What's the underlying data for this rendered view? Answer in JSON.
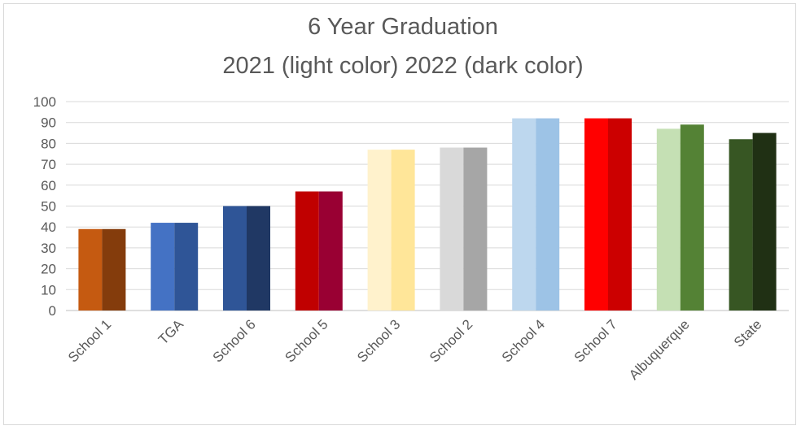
{
  "chart_data": {
    "type": "bar",
    "title": "6 Year Graduation",
    "subtitle": "2021 (light color) 2022 (dark color)",
    "xlabel": "",
    "ylabel": "",
    "ylim": [
      0,
      100
    ],
    "yticks": [
      0,
      10,
      20,
      30,
      40,
      50,
      60,
      70,
      80,
      90,
      100
    ],
    "grid": true,
    "legend": "none",
    "categories": [
      "School 1",
      "TGA",
      "School 6",
      "School 5",
      "School 3",
      "School 2",
      "School 4",
      "School 7",
      "Albuquerque",
      "State"
    ],
    "series": [
      {
        "values": [
          39,
          42,
          50,
          57,
          77,
          78,
          92,
          92,
          87,
          82
        ]
      },
      {
        "values": [
          39,
          42,
          50,
          57,
          77,
          78,
          92,
          92,
          89,
          85
        ]
      }
    ],
    "colors_2021": [
      "#c55a11",
      "#4472c4",
      "#2f5597",
      "#c00000",
      "#fff2cc",
      "#d9d9d9",
      "#bdd7ee",
      "#ff0000",
      "#c5e0b4",
      "#375623"
    ],
    "colors_2022": [
      "#843c0c",
      "#2f5597",
      "#203864",
      "#990033",
      "#ffe699",
      "#a6a6a6",
      "#9dc3e6",
      "#cc0000",
      "#548235",
      "#203014"
    ]
  }
}
